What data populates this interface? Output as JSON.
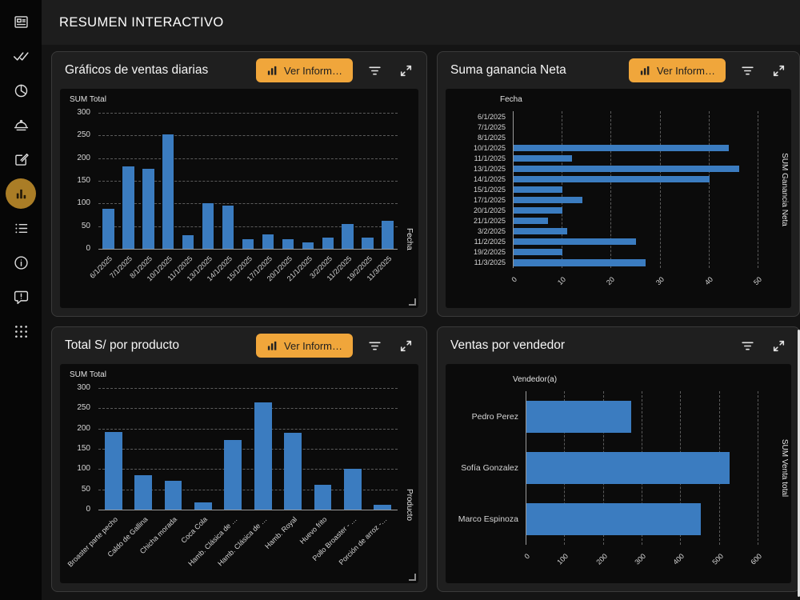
{
  "header": {
    "title": "RESUMEN INTERACTIVO"
  },
  "sidebar": {
    "icons": [
      "summary-icon",
      "double-check-icon",
      "pie-chart-icon",
      "food-service-icon",
      "edit-icon",
      "bar-chart-icon",
      "list-icon",
      "info-icon",
      "feedback-icon",
      "apps-grid-icon"
    ],
    "active_icon": "bar-chart-icon",
    "active_highlight_color": "#aa7d26"
  },
  "colors": {
    "accent": "#f0a63b",
    "bar": "#3b7cc0",
    "panel_background": "#1f1f1f",
    "chart_background": "#0b0b0b"
  },
  "panels": [
    {
      "title": "Gráficos de ventas diarias",
      "button_label": "Ver Inform…"
    },
    {
      "title": "Suma ganancia Neta",
      "button_label": "Ver Inform…"
    },
    {
      "title": "Total S/ por producto",
      "button_label": "Ver Inform…"
    },
    {
      "title": "Ventas por vendedor"
    }
  ],
  "chart_data": [
    {
      "type": "bar",
      "title": "Gráficos de ventas diarias",
      "categories": [
        "6/1/2025",
        "7/1/2025",
        "8/1/2025",
        "10/1/2025",
        "11/1/2025",
        "13/1/2025",
        "14/1/2025",
        "15/1/2025",
        "17/1/2025",
        "20/1/2025",
        "21/1/2025",
        "3/2/2025",
        "11/2/2025",
        "19/2/2025",
        "11/3/2025"
      ],
      "values": [
        88,
        181,
        176,
        252,
        30,
        101,
        96,
        21,
        32,
        21,
        14,
        25,
        55,
        25,
        62
      ],
      "ylabel": "SUM Total",
      "xlabel": "Fecha",
      "ylim": [
        0,
        300
      ],
      "yticks": [
        0,
        50,
        100,
        150,
        200,
        250,
        300
      ],
      "grid": true,
      "bar_color": "#3b7cc0"
    },
    {
      "type": "hbar",
      "title": "Suma ganancia Neta",
      "categories": [
        "6/1/2025",
        "7/1/2025",
        "8/1/2025",
        "10/1/2025",
        "11/1/2025",
        "13/1/2025",
        "14/1/2025",
        "15/1/2025",
        "17/1/2025",
        "20/1/2025",
        "21/1/2025",
        "3/2/2025",
        "11/2/2025",
        "19/2/2025",
        "11/3/2025"
      ],
      "values": [
        0,
        0,
        0,
        44,
        12,
        46,
        40,
        10,
        14,
        10,
        7,
        11,
        25,
        10,
        27
      ],
      "category_axis_label": "Fecha",
      "value_axis_label": "SUM Ganancia Neta",
      "xlim": [
        0,
        50
      ],
      "xticks": [
        0,
        10,
        20,
        30,
        40,
        50
      ],
      "grid": true,
      "bar_color": "#3b7cc0"
    },
    {
      "type": "bar",
      "title": "Total S/ por producto",
      "categories": [
        "Broaster parte pecho",
        "Caldo de Gallina",
        "Chicha morada",
        "Coca Cola",
        "Hamb. Clásica de …",
        "Hamb. Clásica de …",
        "Hamb. Royal",
        "Huevo frito",
        "Pollo Broaster - …",
        "Porción de arroz -…"
      ],
      "values": [
        192,
        85,
        71,
        18,
        172,
        265,
        190,
        62,
        100,
        12
      ],
      "ylabel": "SUM Total",
      "xlabel": "Producto",
      "ylim": [
        0,
        300
      ],
      "yticks": [
        0,
        50,
        100,
        150,
        200,
        250,
        300
      ],
      "grid": true,
      "bar_color": "#3b7cc0"
    },
    {
      "type": "hbar",
      "title": "Ventas por vendedor",
      "categories": [
        "Pedro Perez",
        "Sofía Gonzalez",
        "Marco Espinoza"
      ],
      "values": [
        270,
        525,
        450
      ],
      "category_axis_label": "Vendedor(a)",
      "value_axis_label": "SUM Venta total",
      "xlim": [
        0,
        600
      ],
      "xticks": [
        0,
        100,
        200,
        300,
        400,
        500,
        600
      ],
      "grid": true,
      "bar_color": "#3b7cc0"
    }
  ]
}
